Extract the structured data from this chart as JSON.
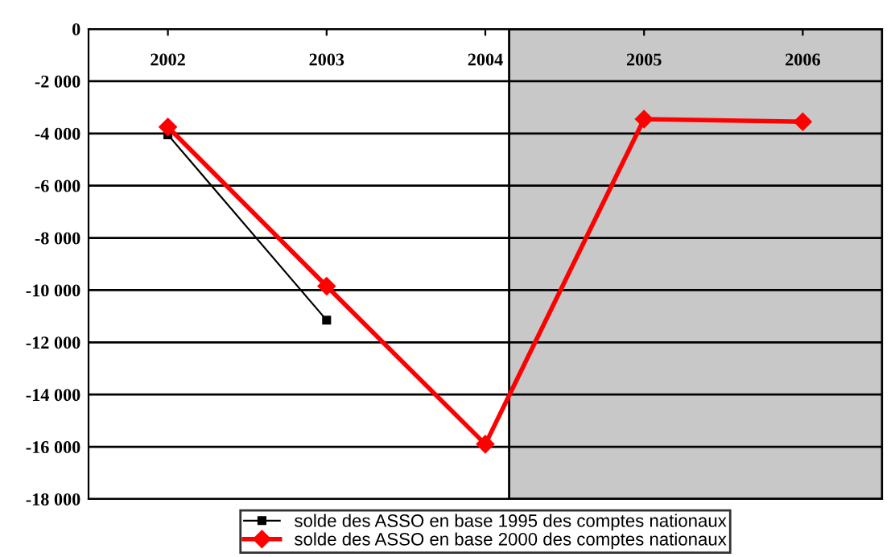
{
  "chart_data": {
    "type": "line",
    "categories": [
      "2002",
      "2003",
      "2004",
      "2005",
      "2006"
    ],
    "series": [
      {
        "name": "solde des ASSO en base 1995 des comptes nationaux",
        "color": "#000000",
        "marker": "square",
        "values": [
          -4050,
          -11150,
          null,
          null,
          null
        ]
      },
      {
        "name": "solde des ASSO en base 2000 des comptes nationaux",
        "color": "#ff0000",
        "marker": "diamond",
        "values": [
          -3750,
          -9850,
          -15900,
          -3450,
          -3550
        ]
      }
    ],
    "ylim": [
      -18000,
      0
    ],
    "yticks": [
      {
        "value": -18000,
        "label": "-18 000"
      },
      {
        "value": -16000,
        "label": "-16 000"
      },
      {
        "value": -14000,
        "label": "-14 000"
      },
      {
        "value": -12000,
        "label": "-12 000"
      },
      {
        "value": -10000,
        "label": "-10 000"
      },
      {
        "value": -8000,
        "label": "-8 000"
      },
      {
        "value": -6000,
        "label": "-6 000"
      },
      {
        "value": -4000,
        "label": "-4 000"
      },
      {
        "value": -2000,
        "label": "-2 000"
      },
      {
        "value": 0,
        "label": "0"
      }
    ],
    "bands": [
      {
        "axis": "x",
        "from": "2004",
        "to": "2006",
        "color": "#c8c8c8"
      }
    ],
    "grid": "y",
    "legend": "bottom",
    "line_style": "solid"
  }
}
